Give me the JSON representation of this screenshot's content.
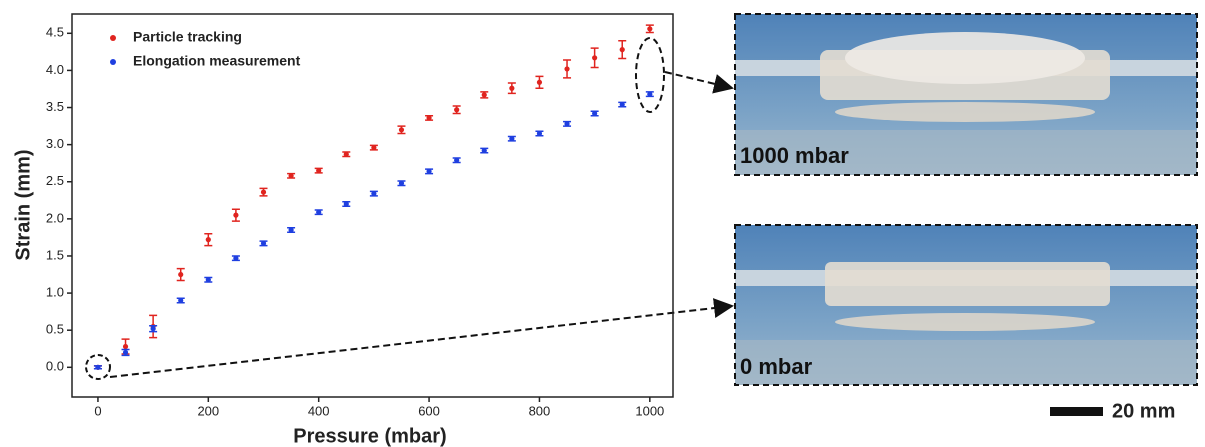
{
  "chart_data": {
    "type": "scatter",
    "x_label": "Pressure (mbar)",
    "y_label": "Strain (mm)",
    "x": [
      0,
      50,
      100,
      150,
      200,
      250,
      300,
      350,
      400,
      450,
      500,
      550,
      600,
      650,
      700,
      750,
      800,
      850,
      900,
      950,
      1000
    ],
    "series": [
      {
        "name": "Particle tracking",
        "color": "#e0241f",
        "values": [
          0,
          0.28,
          0.55,
          1.25,
          1.72,
          2.05,
          2.36,
          2.58,
          2.65,
          2.87,
          2.96,
          3.2,
          3.36,
          3.47,
          3.67,
          3.76,
          3.84,
          4.02,
          4.17,
          4.28,
          4.56
        ],
        "errors": [
          0.02,
          0.1,
          0.15,
          0.08,
          0.08,
          0.08,
          0.05,
          0.03,
          0.03,
          0.03,
          0.03,
          0.05,
          0.03,
          0.05,
          0.04,
          0.07,
          0.08,
          0.12,
          0.13,
          0.12,
          0.05
        ]
      },
      {
        "name": "Elongation measurement",
        "color": "#1f3fe0",
        "values": [
          0,
          0.2,
          0.52,
          0.9,
          1.18,
          1.47,
          1.67,
          1.85,
          2.09,
          2.2,
          2.34,
          2.48,
          2.64,
          2.79,
          2.92,
          3.08,
          3.15,
          3.28,
          3.42,
          3.54,
          3.68
        ],
        "errors": [
          0.02,
          0.04,
          0.04,
          0.03,
          0.03,
          0.03,
          0.03,
          0.03,
          0.03,
          0.03,
          0.03,
          0.03,
          0.03,
          0.03,
          0.03,
          0.03,
          0.03,
          0.03,
          0.03,
          0.03,
          0.03
        ]
      }
    ],
    "xlim": [
      -47,
      1042
    ],
    "xticks": [
      0,
      200,
      400,
      600,
      800,
      1000
    ],
    "ylim": [
      -0.4,
      4.76
    ],
    "yticks": [
      {
        "value": 0,
        "label": "0.0"
      },
      {
        "value": 0.5,
        "label": "0.5"
      },
      {
        "value": 1,
        "label": "1.0"
      },
      {
        "value": 1.5,
        "label": "1.5"
      },
      {
        "value": 2,
        "label": "2.0"
      },
      {
        "value": 2.5,
        "label": "2.5"
      },
      {
        "value": 3,
        "label": "3.0"
      },
      {
        "value": 3.5,
        "label": "3.5"
      },
      {
        "value": 4,
        "label": "4.0"
      },
      {
        "value": 4.5,
        "label": "4.5"
      }
    ],
    "legend": "top-left"
  },
  "photos": [
    {
      "label": "1000 mbar"
    },
    {
      "label": "0 mbar"
    }
  ],
  "scale_bar": "20 mm"
}
